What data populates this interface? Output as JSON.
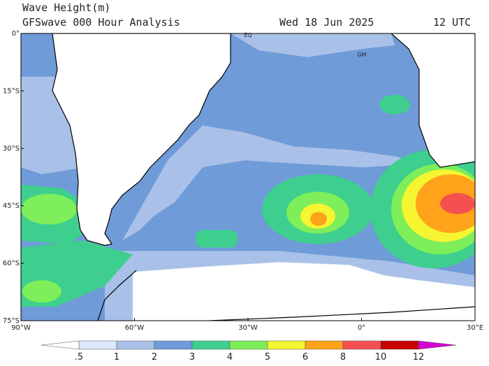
{
  "header": {
    "title": "Wave Height(m)",
    "subtitle": "GFSwave 000 Hour Analysis",
    "date": "Wed 18 Jun 2025",
    "time": "12 UTC"
  },
  "map": {
    "lat_labels": [
      {
        "value": 0,
        "label": "0°"
      },
      {
        "value": -15,
        "label": "15°S"
      },
      {
        "value": -30,
        "label": "30°S"
      },
      {
        "value": -45,
        "label": "45°S"
      },
      {
        "value": -60,
        "label": "60°S"
      },
      {
        "value": -75,
        "label": "75°S"
      }
    ],
    "lon_labels": [
      {
        "value": -90,
        "label": "90°W"
      },
      {
        "value": -60,
        "label": "60°W"
      },
      {
        "value": -30,
        "label": "30°W"
      },
      {
        "value": 0,
        "label": "0°"
      },
      {
        "value": 30,
        "label": "30°E"
      }
    ],
    "annotations": [
      "EQ",
      "GM"
    ]
  },
  "colorbar": {
    "ticks": [
      {
        "value": 0.5,
        "label": ".5"
      },
      1,
      2,
      3,
      4,
      5,
      6,
      8,
      10,
      12
    ],
    "colors": [
      "#ffffff",
      "#dce8f8",
      "#a9c1e8",
      "#6f9bd8",
      "#3ecf8e",
      "#7eee5a",
      "#f5f531",
      "#ffa31a",
      "#f55050",
      "#c80000",
      "#d400d4"
    ]
  }
}
